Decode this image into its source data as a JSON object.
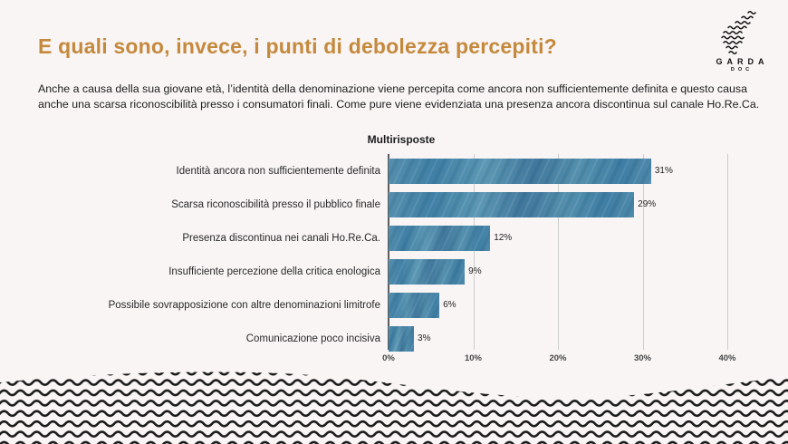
{
  "slide": {
    "title": "E quali sono, invece, i punti di debolezza percepiti?",
    "body": "Anche a causa della sua giovane età, l’identità della denominazione viene percepita come ancora non sufficientemente definita e questo causa anche una scarsa riconoscibilità presso i consumatori finali. Come pure viene evidenziata una presenza ancora discontinua sul canale Ho.Re.Ca.",
    "title_color": "#c4893c",
    "background_color": "#f9f5f5"
  },
  "logo": {
    "brand": "GARDA",
    "sub": "DOC"
  },
  "chart_data": {
    "type": "bar",
    "orientation": "horizontal",
    "title": "Multirisposte",
    "categories": [
      "Identità ancora non sufficientemente definita",
      "Scarsa riconoscibilità presso il pubblico finale",
      "Presenza discontinua nei canali Ho.Re.Ca.",
      "Insufficiente percezione della critica enologica",
      "Possibile sovrapposizione con altre denominazioni limitrofe",
      "Comunicazione poco incisiva"
    ],
    "values": [
      31,
      29,
      12,
      9,
      6,
      3
    ],
    "value_labels": [
      "31%",
      "29%",
      "12%",
      "9%",
      "6%",
      "3%"
    ],
    "x_ticks": [
      0,
      10,
      20,
      30,
      40
    ],
    "x_tick_labels": [
      "0%",
      "10%",
      "20%",
      "30%",
      "40%"
    ],
    "xlim": [
      0,
      40
    ],
    "xlabel": "",
    "ylabel": "",
    "grid": true,
    "legend_position": "none",
    "bar_color": "#4a86a8"
  }
}
